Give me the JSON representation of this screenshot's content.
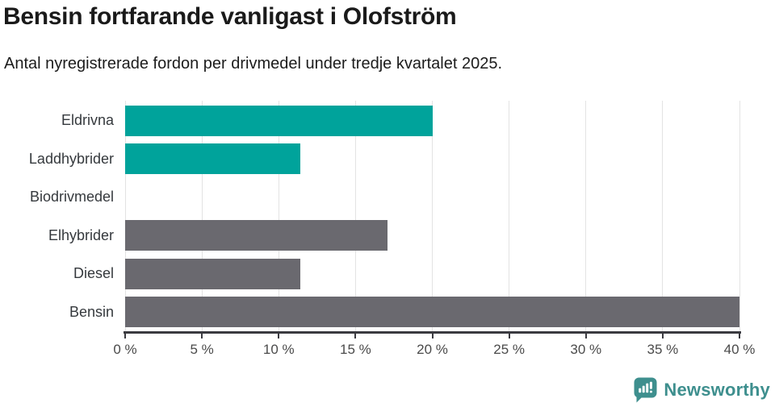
{
  "header": {
    "title": "Bensin fortfarande vanligast i Olofström",
    "subtitle": "Antal nyregistrerade fordon per drivmedel under tredje kvartalet 2025."
  },
  "chart_data": {
    "type": "bar",
    "orientation": "horizontal",
    "title": "Bensin fortfarande vanligast i Olofström",
    "subtitle": "Antal nyregistrerade fordon per drivmedel under tredje kvartalet 2025.",
    "categories": [
      "Eldrivna",
      "Laddhybrider",
      "Biodrivmedel",
      "Elhybrider",
      "Diesel",
      "Bensin"
    ],
    "values": [
      20,
      11.4,
      0,
      17.1,
      11.4,
      40
    ],
    "unit": "%",
    "bar_colors": [
      "#00a39b",
      "#00a39b",
      "#6a696f",
      "#6a696f",
      "#6a696f",
      "#6a696f"
    ],
    "xlim": [
      0,
      40
    ],
    "x_ticks": [
      {
        "value": 0,
        "label": "0 %"
      },
      {
        "value": 5,
        "label": "5 %"
      },
      {
        "value": 10,
        "label": "10 %"
      },
      {
        "value": 15,
        "label": "15 %"
      },
      {
        "value": 20,
        "label": "20 %"
      },
      {
        "value": 25,
        "label": "25 %"
      },
      {
        "value": 30,
        "label": "30 %"
      },
      {
        "value": 35,
        "label": "35 %"
      },
      {
        "value": 40,
        "label": "40 %"
      }
    ],
    "grid": "vertical",
    "legend": "none"
  },
  "colors": {
    "accent_teal": "#00a39b",
    "neutral_gray": "#6a696f",
    "gridline": "#e3e3e3",
    "axis": "#3a3a40"
  },
  "footer": {
    "brand": "Newsworthy",
    "brand_color": "#3e8f8e",
    "logo_icon": "newsworthy-bar-chart-speech-bubble-icon"
  }
}
